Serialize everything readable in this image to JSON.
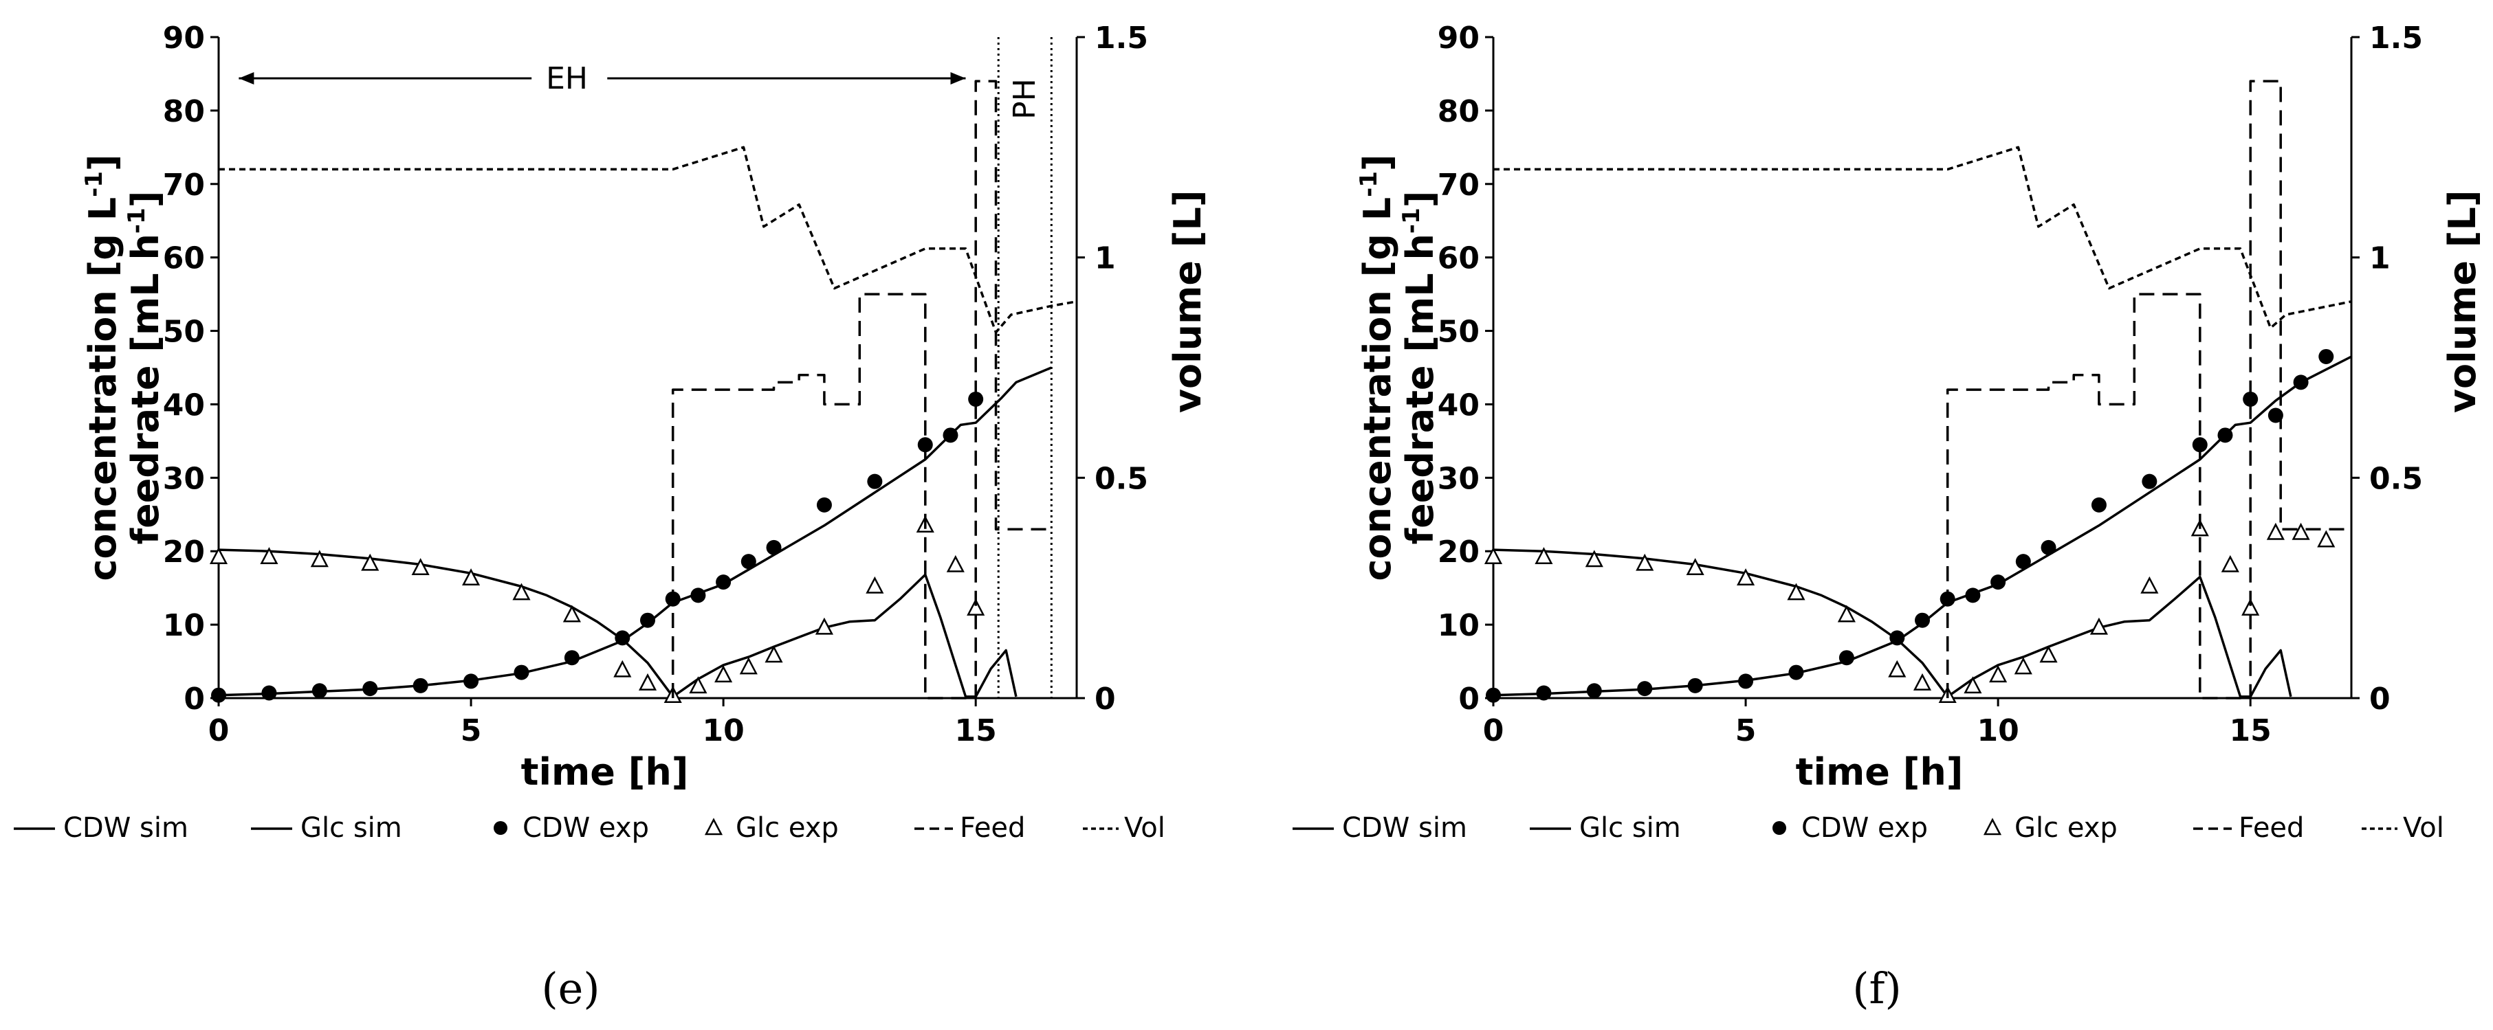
{
  "chart_data": [
    {
      "type": "line",
      "panel_label": "(e)",
      "xlabel": "time [h]",
      "ylabel": [
        "concentration [g L",
        "feedrate [mL h"
      ],
      "ylabel_superscript": "-1",
      "ylabel_suffix": "]",
      "y2label": "volume [L]",
      "xlim": [
        0,
        17
      ],
      "ylim": [
        0,
        90
      ],
      "y2lim": [
        0,
        1.5
      ],
      "xticks": [
        0,
        5,
        10,
        15
      ],
      "yticks": [
        0,
        10,
        20,
        30,
        40,
        50,
        60,
        70,
        80,
        90
      ],
      "y2ticks": [
        0,
        0.5,
        1,
        1.5
      ],
      "annotations": [
        {
          "text": "EH",
          "arrow_from": 0.4,
          "arrow_to": 14.8
        },
        {
          "text": "PH",
          "boundaries": [
            15.45,
            16.5
          ]
        }
      ],
      "series": [
        {
          "name": "CDW sim",
          "style": "solid",
          "x": [
            0,
            1,
            2,
            3,
            4,
            5,
            6,
            7,
            8,
            8.5,
            9,
            10,
            11,
            12,
            13,
            14,
            14.7,
            15,
            15.5,
            15.8,
            16.5
          ],
          "y": [
            0.4,
            0.6,
            0.9,
            1.2,
            1.7,
            2.4,
            3.4,
            5.0,
            7.8,
            10.2,
            13.0,
            15.5,
            19.5,
            23.5,
            28.0,
            32.5,
            37.2,
            37.5,
            40.8,
            43.0,
            45.0
          ]
        },
        {
          "name": "Glc sim",
          "style": "solid",
          "x": [
            0,
            1,
            2,
            3,
            4,
            5,
            6,
            6.5,
            7,
            7.5,
            8,
            8.5,
            9,
            9.5,
            10,
            10.5,
            11,
            11.5,
            12,
            12.5,
            13,
            13.5,
            14,
            14.3,
            14.6,
            14.8,
            15,
            15.3,
            15.6,
            15.8
          ],
          "y": [
            20.2,
            20.0,
            19.6,
            19.0,
            18.2,
            17.0,
            15.2,
            14.0,
            12.4,
            10.4,
            8.0,
            4.8,
            0.2,
            2.6,
            4.5,
            5.6,
            7.0,
            8.3,
            9.6,
            10.4,
            10.6,
            13.5,
            16.8,
            11.0,
            4.5,
            0.2,
            0.2,
            4.0,
            6.5,
            0.2
          ]
        },
        {
          "name": "CDW exp",
          "marker": "filled-circle",
          "x": [
            0,
            1,
            2,
            3,
            4,
            5,
            6,
            7,
            8,
            8.5,
            9,
            9.5,
            10,
            10.5,
            11,
            12,
            13,
            14,
            14.5,
            15
          ],
          "y": [
            0.4,
            0.7,
            1.0,
            1.3,
            1.7,
            2.3,
            3.5,
            5.5,
            8.2,
            10.6,
            13.5,
            14.0,
            15.8,
            18.6,
            20.5,
            26.3,
            29.5,
            34.5,
            35.8,
            40.7
          ]
        },
        {
          "name": "Glc exp",
          "marker": "open-triangle",
          "x": [
            0,
            1,
            2,
            3,
            4,
            5,
            6,
            7,
            8,
            8.5,
            9,
            9.5,
            10,
            10.5,
            11,
            12,
            13,
            14,
            14.6,
            15
          ],
          "y": [
            19.2,
            19.2,
            18.8,
            18.3,
            17.7,
            16.3,
            14.3,
            11.3,
            3.8,
            2.0,
            0.3,
            1.6,
            3.1,
            4.2,
            5.8,
            9.6,
            15.2,
            23.5,
            18.1,
            12.2
          ]
        },
        {
          "name": "Feed",
          "style": "dashed",
          "x": [
            9,
            9,
            11,
            11,
            11.5,
            11.5,
            12,
            12,
            12.7,
            12.7,
            13.6,
            13.6,
            14,
            14,
            15,
            15,
            15.4,
            15.4,
            15.6,
            15.6,
            16.5
          ],
          "y": [
            0,
            42,
            42,
            43,
            43,
            44,
            44,
            40,
            40,
            55,
            55,
            55,
            55,
            0,
            0,
            84,
            84,
            23,
            23,
            23,
            23
          ]
        },
        {
          "name": "Vol",
          "style": "short-dash",
          "axis": "y2",
          "x": [
            0,
            9,
            10.4,
            10.8,
            11.5,
            12.2,
            13,
            14,
            14.8,
            15.4,
            15.7,
            16.5,
            17
          ],
          "y": [
            1.2,
            1.2,
            1.25,
            1.07,
            1.12,
            0.93,
            0.97,
            1.02,
            1.02,
            0.83,
            0.87,
            0.89,
            0.9
          ]
        }
      ]
    },
    {
      "type": "line",
      "panel_label": "(f)",
      "xlabel": "time [h]",
      "ylabel": [
        "concentration [g L",
        "feedrate [mL h"
      ],
      "ylabel_superscript": "-1",
      "ylabel_suffix": "]",
      "y2label": "volume [L]",
      "xlim": [
        0,
        17
      ],
      "ylim": [
        0,
        90
      ],
      "y2lim": [
        0,
        1.5
      ],
      "xticks": [
        0,
        5,
        10,
        15
      ],
      "yticks": [
        0,
        10,
        20,
        30,
        40,
        50,
        60,
        70,
        80,
        90
      ],
      "y2ticks": [
        0,
        0.5,
        1,
        1.5
      ],
      "annotations": [],
      "series": [
        {
          "name": "CDW sim",
          "style": "solid",
          "x": [
            0,
            1,
            2,
            3,
            4,
            5,
            6,
            7,
            8,
            8.5,
            9,
            10,
            11,
            12,
            13,
            14,
            14.7,
            15,
            15.5,
            16,
            17
          ],
          "y": [
            0.4,
            0.6,
            0.9,
            1.2,
            1.7,
            2.4,
            3.4,
            5.0,
            7.8,
            10.2,
            13.0,
            15.5,
            19.5,
            23.5,
            28.0,
            32.5,
            37.2,
            37.5,
            40.5,
            43.0,
            46.5
          ]
        },
        {
          "name": "Glc sim",
          "style": "solid",
          "x": [
            0,
            1,
            2,
            3,
            4,
            5,
            6,
            6.5,
            7,
            7.5,
            8,
            8.5,
            9,
            9.5,
            10,
            10.5,
            11,
            11.5,
            12,
            12.5,
            13,
            13.5,
            14,
            14.3,
            14.6,
            14.8,
            15,
            15.3,
            15.6,
            15.8
          ],
          "y": [
            20.2,
            20.0,
            19.6,
            19.0,
            18.2,
            17.0,
            15.2,
            14.0,
            12.4,
            10.4,
            8.0,
            4.8,
            0.2,
            2.6,
            4.5,
            5.6,
            7.0,
            8.3,
            9.6,
            10.4,
            10.6,
            13.5,
            16.5,
            11.0,
            4.5,
            0.2,
            0.2,
            4.0,
            6.5,
            0.2
          ]
        },
        {
          "name": "CDW exp",
          "marker": "filled-circle",
          "x": [
            0,
            1,
            2,
            3,
            4,
            5,
            6,
            7,
            8,
            8.5,
            9,
            9.5,
            10,
            10.5,
            11,
            12,
            13,
            14,
            14.5,
            15,
            15.5,
            16,
            16.5
          ],
          "y": [
            0.4,
            0.7,
            1.0,
            1.3,
            1.7,
            2.3,
            3.5,
            5.5,
            8.2,
            10.6,
            13.5,
            14.0,
            15.8,
            18.6,
            20.5,
            26.3,
            29.5,
            34.5,
            35.8,
            40.7,
            38.5,
            43.0,
            46.5
          ]
        },
        {
          "name": "Glc exp",
          "marker": "open-triangle",
          "x": [
            0,
            1,
            2,
            3,
            4,
            5,
            6,
            7,
            8,
            8.5,
            9,
            9.5,
            10,
            10.5,
            11,
            12,
            13,
            14,
            14.6,
            15,
            15.5,
            16,
            16.5
          ],
          "y": [
            19.2,
            19.2,
            18.8,
            18.3,
            17.7,
            16.3,
            14.3,
            11.3,
            3.8,
            2.0,
            0.3,
            1.6,
            3.1,
            4.2,
            5.8,
            9.6,
            15.2,
            23.0,
            18.1,
            12.2,
            22.5,
            22.5,
            21.5
          ]
        },
        {
          "name": "Feed",
          "style": "dashed",
          "x": [
            9,
            9,
            11,
            11,
            11.5,
            11.5,
            12,
            12,
            12.7,
            12.7,
            13.6,
            13.6,
            14,
            14,
            15,
            15,
            15.6,
            15.6,
            17
          ],
          "y": [
            0,
            42,
            42,
            43,
            43,
            44,
            44,
            40,
            40,
            55,
            55,
            55,
            55,
            0,
            0,
            84,
            84,
            23,
            23
          ]
        },
        {
          "name": "Vol",
          "style": "short-dash",
          "axis": "y2",
          "x": [
            0,
            9,
            10.4,
            10.8,
            11.5,
            12.2,
            13,
            14,
            14.8,
            15.4,
            15.7,
            17
          ],
          "y": [
            1.2,
            1.2,
            1.25,
            1.07,
            1.12,
            0.93,
            0.97,
            1.02,
            1.02,
            0.84,
            0.87,
            0.9
          ]
        }
      ]
    }
  ]
}
